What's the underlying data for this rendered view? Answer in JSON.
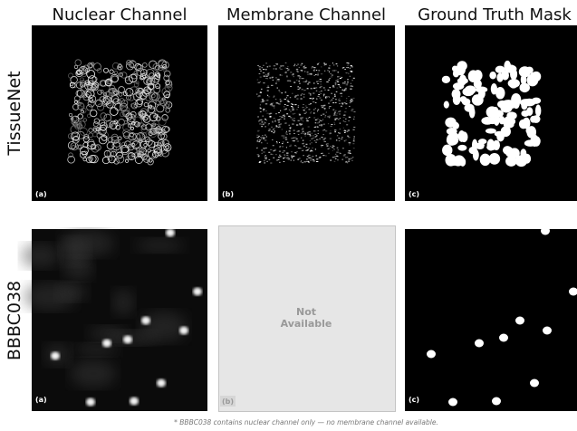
{
  "columns": [
    "Nuclear Channel",
    "Membrane Channel",
    "Ground Truth Mask"
  ],
  "rows": [
    {
      "label": "TissueNet",
      "panels": [
        "(a)",
        "(b)",
        "(c)"
      ]
    },
    {
      "label": "BBBC038",
      "panels": [
        "(a)",
        "(b)",
        "(c)"
      ],
      "placeholder": [
        "Not",
        "Available"
      ]
    }
  ],
  "footnote": "* BBBC038 contains nuclear channel only — no membrane channel available."
}
